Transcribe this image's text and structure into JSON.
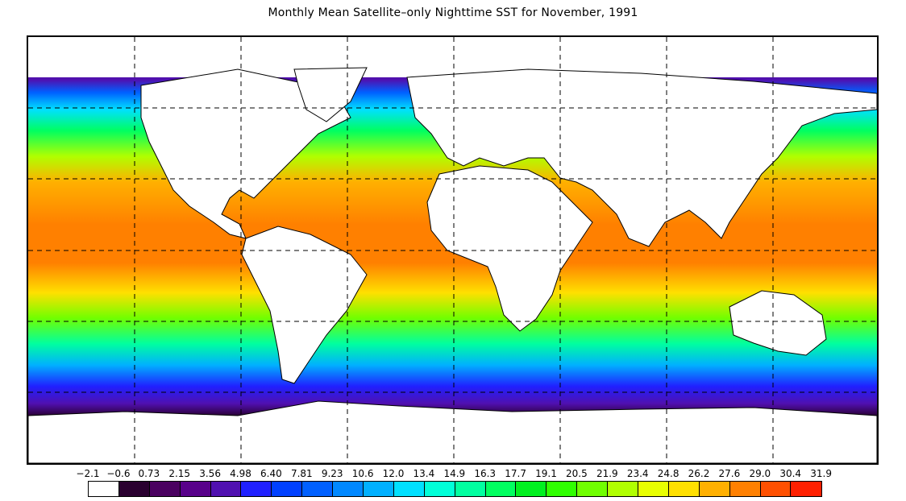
{
  "title": "Monthly Mean Satellite–only Nighttime SST for November, 1991",
  "map": {
    "projection": "equirectangular",
    "graticule": "dashed",
    "land_color": "#ffffff",
    "coastline_color": "#000000"
  },
  "legend": {
    "labels": [
      "−2.1",
      "−0.6",
      "0.73",
      "2.15",
      "3.56",
      "4.98",
      "6.40",
      "7.81",
      "9.23",
      "10.6",
      "12.0",
      "13.4",
      "14.9",
      "16.3",
      "17.7",
      "19.1",
      "20.5",
      "21.9",
      "23.4",
      "24.8",
      "26.2",
      "27.6",
      "29.0",
      "30.4",
      "31.9"
    ],
    "colors": [
      "#ffffff",
      "#2a0030",
      "#4a0060",
      "#58008a",
      "#5010b0",
      "#2020ff",
      "#0040ff",
      "#0060ff",
      "#0088ff",
      "#00b0ff",
      "#00e0ff",
      "#00ffd8",
      "#00ffa0",
      "#00ff60",
      "#00f020",
      "#30ff00",
      "#70ff00",
      "#b0ff00",
      "#e8ff00",
      "#ffe000",
      "#ffb000",
      "#ff8000",
      "#ff5000",
      "#ff2000"
    ]
  }
}
